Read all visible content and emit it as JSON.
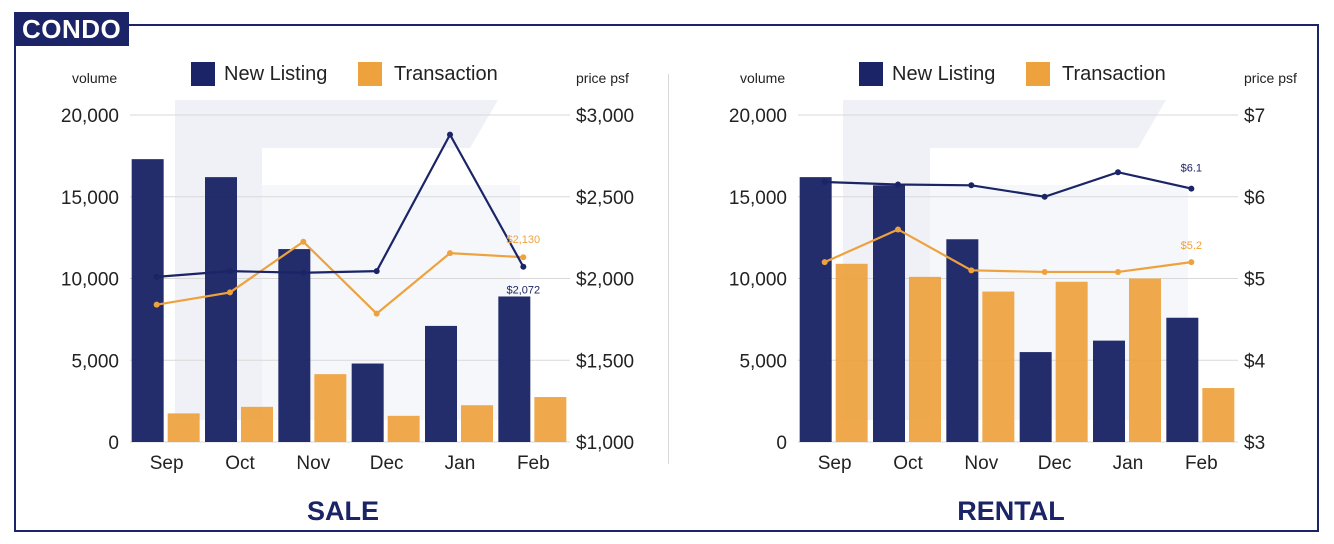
{
  "badge": "CONDO",
  "colors": {
    "listing": "#1a2466",
    "transaction": "#eea23d",
    "frame": "#1a2466",
    "grid": "#d9d9d9"
  },
  "chart_data": [
    {
      "type": "bar",
      "title": "SALE",
      "categories": [
        "Sep",
        "Oct",
        "Nov",
        "Dec",
        "Jan",
        "Feb"
      ],
      "series": [
        {
          "name": "New Listing",
          "kind": "bar",
          "axis": "left",
          "values": [
            17300,
            16200,
            11800,
            4800,
            7100,
            8900
          ]
        },
        {
          "name": "Transaction",
          "kind": "bar",
          "axis": "left",
          "values": [
            1750,
            2150,
            4150,
            1600,
            2250,
            2750
          ]
        },
        {
          "name": "New Listing",
          "kind": "line",
          "axis": "right",
          "values": [
            2010,
            2045,
            2035,
            2045,
            2880,
            2072
          ]
        },
        {
          "name": "Transaction",
          "kind": "line",
          "axis": "right",
          "values": [
            1840,
            1915,
            2225,
            1785,
            2155,
            2130
          ]
        }
      ],
      "ylabel_left": "volume",
      "ylabel_right": "price psf",
      "ylim_left": [
        0,
        20000
      ],
      "ylim_right": [
        1000,
        3000
      ],
      "yticks_left": [
        "0",
        "5,000",
        "10,000",
        "15,000",
        "20,000"
      ],
      "yticks_right": [
        "$1,000",
        "$1,500",
        "$2,000",
        "$2,500",
        "$3,000"
      ],
      "annotations": {
        "listing_last": "$2,072",
        "transaction_last": "$2,130"
      },
      "legend": "top",
      "grid": true
    },
    {
      "type": "bar",
      "title": "RENTAL",
      "categories": [
        "Sep",
        "Oct",
        "Nov",
        "Dec",
        "Jan",
        "Feb"
      ],
      "series": [
        {
          "name": "New Listing",
          "kind": "bar",
          "axis": "left",
          "values": [
            16200,
            15700,
            12400,
            5500,
            6200,
            7600
          ]
        },
        {
          "name": "Transaction",
          "kind": "bar",
          "axis": "left",
          "values": [
            10900,
            10100,
            9200,
            9800,
            10000,
            3300
          ]
        },
        {
          "name": "New Listing",
          "kind": "line",
          "axis": "right",
          "values": [
            6.18,
            6.15,
            6.14,
            6.0,
            6.3,
            6.1
          ]
        },
        {
          "name": "Transaction",
          "kind": "line",
          "axis": "right",
          "values": [
            5.2,
            5.6,
            5.1,
            5.08,
            5.08,
            5.2
          ]
        }
      ],
      "ylabel_left": "volume",
      "ylabel_right": "price psf",
      "ylim_left": [
        0,
        20000
      ],
      "ylim_right": [
        3,
        7
      ],
      "yticks_left": [
        "0",
        "5,000",
        "10,000",
        "15,000",
        "20,000"
      ],
      "yticks_right": [
        "$3",
        "$4",
        "$5",
        "$6",
        "$7"
      ],
      "annotations": {
        "listing_last": "$6.1",
        "transaction_last": "$5.2"
      },
      "legend": "top",
      "grid": true
    }
  ]
}
